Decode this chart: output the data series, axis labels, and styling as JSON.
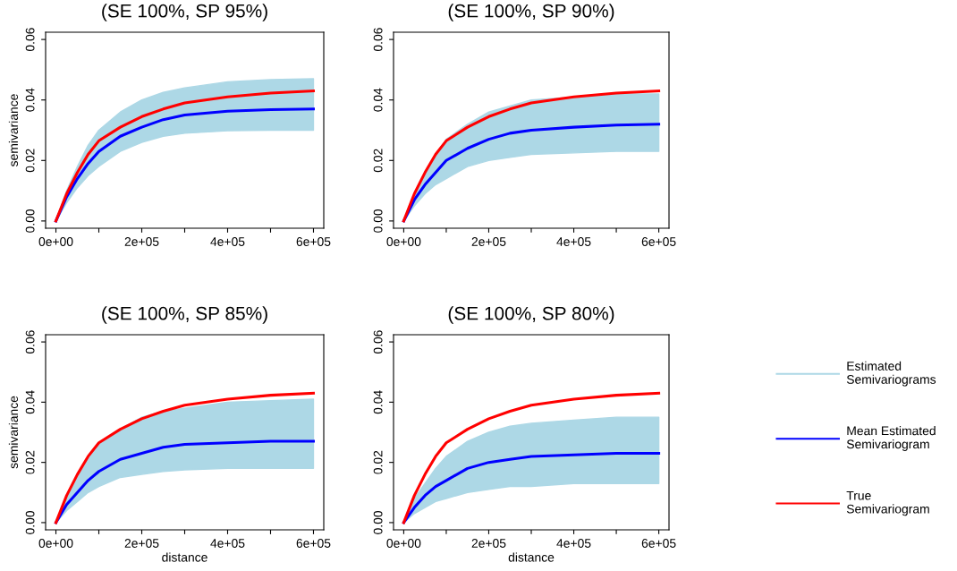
{
  "chart_data": [
    {
      "type": "line",
      "title": "(SE 100%, SP 95%)",
      "ylabel": "semivariance",
      "x": [
        0,
        25000,
        50000,
        75000,
        100000,
        150000,
        200000,
        250000,
        300000,
        400000,
        500000,
        600000
      ],
      "xlim": [
        -24000,
        624000
      ],
      "xticks": [
        {
          "value": 0,
          "label": "0e+00"
        },
        {
          "value": 100000,
          "label": null
        },
        {
          "value": 200000,
          "label": "2e+05"
        },
        {
          "value": 300000,
          "label": null
        },
        {
          "value": 400000,
          "label": "4e+05"
        },
        {
          "value": 500000,
          "label": null
        },
        {
          "value": 600000,
          "label": "6e+05"
        }
      ],
      "ylim": [
        -0.0024,
        0.0624
      ],
      "yticks": [
        {
          "value": 0,
          "label": "0.00"
        },
        {
          "value": 0.02,
          "label": "0.02"
        },
        {
          "value": 0.04,
          "label": "0.04"
        },
        {
          "value": 0.06,
          "label": "0.06"
        }
      ],
      "series": [
        {
          "color": "#add8e6",
          "values": [
            null,
            null,
            null,
            null,
            null,
            null,
            null,
            null,
            null,
            null,
            null,
            null
          ],
          "lower": [
            0,
            0.006,
            0.011,
            0.015,
            0.018,
            0.023,
            0.026,
            0.028,
            0.029,
            0.0298,
            0.03,
            0.03
          ],
          "upper": [
            0,
            0.01,
            0.018,
            0.025,
            0.03,
            0.036,
            0.04,
            0.0425,
            0.044,
            0.046,
            0.0467,
            0.047
          ]
        },
        {
          "color": "#0000ff",
          "values": [
            0,
            0.008,
            0.014,
            0.019,
            0.023,
            0.028,
            0.031,
            0.0335,
            0.035,
            0.0363,
            0.0368,
            0.037
          ]
        },
        {
          "color": "#ff0000",
          "values": [
            0,
            0.009,
            0.016,
            0.022,
            0.0265,
            0.031,
            0.0345,
            0.037,
            0.039,
            0.041,
            0.0423,
            0.043
          ]
        }
      ]
    },
    {
      "type": "line",
      "title": "(SE 100%, SP 90%)",
      "x": [
        0,
        25000,
        50000,
        75000,
        100000,
        150000,
        200000,
        250000,
        300000,
        400000,
        500000,
        600000
      ],
      "xlim": [
        -24000,
        624000
      ],
      "xticks": [
        {
          "value": 0,
          "label": "0e+00"
        },
        {
          "value": 100000,
          "label": null
        },
        {
          "value": 200000,
          "label": "2e+05"
        },
        {
          "value": 300000,
          "label": null
        },
        {
          "value": 400000,
          "label": "4e+05"
        },
        {
          "value": 500000,
          "label": null
        },
        {
          "value": 600000,
          "label": "6e+05"
        }
      ],
      "ylim": [
        -0.0024,
        0.0624
      ],
      "yticks": [
        {
          "value": 0,
          "label": "0.00"
        },
        {
          "value": 0.02,
          "label": "0.02"
        },
        {
          "value": 0.04,
          "label": "0.04"
        },
        {
          "value": 0.06,
          "label": "0.06"
        }
      ],
      "series": [
        {
          "color": "#add8e6",
          "values": [
            null,
            null,
            null,
            null,
            null,
            null,
            null,
            null,
            null,
            null,
            null,
            null
          ],
          "lower": [
            0,
            0.005,
            0.009,
            0.012,
            0.014,
            0.018,
            0.02,
            0.021,
            0.022,
            0.0225,
            0.023,
            0.023
          ],
          "upper": [
            0,
            0.009,
            0.016,
            0.022,
            0.027,
            0.032,
            0.036,
            0.038,
            0.04,
            0.041,
            0.042,
            0.042
          ]
        },
        {
          "color": "#0000ff",
          "values": [
            0,
            0.007,
            0.012,
            0.016,
            0.02,
            0.024,
            0.027,
            0.029,
            0.03,
            0.031,
            0.0317,
            0.032
          ]
        },
        {
          "color": "#ff0000",
          "values": [
            0,
            0.009,
            0.016,
            0.022,
            0.0265,
            0.031,
            0.0345,
            0.037,
            0.039,
            0.041,
            0.0423,
            0.043
          ]
        }
      ]
    },
    {
      "type": "line",
      "title": "(SE 100%, SP 85%)",
      "xlabel": "distance",
      "ylabel": "semivariance",
      "x": [
        0,
        25000,
        50000,
        75000,
        100000,
        150000,
        200000,
        250000,
        300000,
        400000,
        500000,
        600000
      ],
      "xlim": [
        -24000,
        624000
      ],
      "xticks": [
        {
          "value": 0,
          "label": "0e+00"
        },
        {
          "value": 100000,
          "label": null
        },
        {
          "value": 200000,
          "label": "2e+05"
        },
        {
          "value": 300000,
          "label": null
        },
        {
          "value": 400000,
          "label": "4e+05"
        },
        {
          "value": 500000,
          "label": null
        },
        {
          "value": 600000,
          "label": "6e+05"
        }
      ],
      "ylim": [
        -0.0024,
        0.0624
      ],
      "yticks": [
        {
          "value": 0,
          "label": "0.00"
        },
        {
          "value": 0.02,
          "label": "0.02"
        },
        {
          "value": 0.04,
          "label": "0.04"
        },
        {
          "value": 0.06,
          "label": "0.06"
        }
      ],
      "series": [
        {
          "color": "#add8e6",
          "values": [
            null,
            null,
            null,
            null,
            null,
            null,
            null,
            null,
            null,
            null,
            null,
            null
          ],
          "lower": [
            0,
            0.004,
            0.007,
            0.01,
            0.012,
            0.015,
            0.016,
            0.017,
            0.0175,
            0.018,
            0.018,
            0.018
          ],
          "upper": [
            0,
            0.009,
            0.016,
            0.021,
            0.026,
            0.031,
            0.035,
            0.037,
            0.038,
            0.04,
            0.0405,
            0.041
          ]
        },
        {
          "color": "#0000ff",
          "values": [
            0,
            0.006,
            0.01,
            0.014,
            0.017,
            0.021,
            0.023,
            0.025,
            0.026,
            0.0265,
            0.027,
            0.027
          ]
        },
        {
          "color": "#ff0000",
          "values": [
            0,
            0.009,
            0.016,
            0.022,
            0.0265,
            0.031,
            0.0345,
            0.037,
            0.039,
            0.041,
            0.0423,
            0.043
          ]
        }
      ]
    },
    {
      "type": "line",
      "title": "(SE 100%, SP 80%)",
      "xlabel": "distance",
      "legend": "right",
      "x": [
        0,
        25000,
        50000,
        75000,
        100000,
        150000,
        200000,
        250000,
        300000,
        400000,
        500000,
        600000
      ],
      "xlim": [
        -24000,
        624000
      ],
      "xticks": [
        {
          "value": 0,
          "label": "0e+00"
        },
        {
          "value": 100000,
          "label": null
        },
        {
          "value": 200000,
          "label": "2e+05"
        },
        {
          "value": 300000,
          "label": null
        },
        {
          "value": 400000,
          "label": "4e+05"
        },
        {
          "value": 500000,
          "label": null
        },
        {
          "value": 600000,
          "label": "6e+05"
        }
      ],
      "ylim": [
        -0.0024,
        0.0624
      ],
      "yticks": [
        {
          "value": 0,
          "label": "0.00"
        },
        {
          "value": 0.02,
          "label": "0.02"
        },
        {
          "value": 0.04,
          "label": "0.04"
        },
        {
          "value": 0.06,
          "label": "0.06"
        }
      ],
      "series": [
        {
          "name": "Estimated\nSemivariograms",
          "color": "#add8e6",
          "values": [
            null,
            null,
            null,
            null,
            null,
            null,
            null,
            null,
            null,
            null,
            null,
            null
          ],
          "lower": [
            0,
            0.003,
            0.005,
            0.007,
            0.008,
            0.01,
            0.011,
            0.012,
            0.012,
            0.013,
            0.013,
            0.013
          ],
          "upper": [
            0,
            0.008,
            0.013,
            0.018,
            0.022,
            0.027,
            0.03,
            0.032,
            0.033,
            0.034,
            0.035,
            0.035
          ]
        },
        {
          "name": "Mean Estimated\nSemivariogram",
          "color": "#0000ff",
          "values": [
            0,
            0.005,
            0.009,
            0.012,
            0.014,
            0.018,
            0.02,
            0.021,
            0.022,
            0.0225,
            0.023,
            0.023
          ]
        },
        {
          "name": "True\nSemivariogram",
          "color": "#ff0000",
          "values": [
            0,
            0.009,
            0.016,
            0.022,
            0.0265,
            0.031,
            0.0345,
            0.037,
            0.039,
            0.041,
            0.0423,
            0.043
          ]
        }
      ]
    }
  ]
}
